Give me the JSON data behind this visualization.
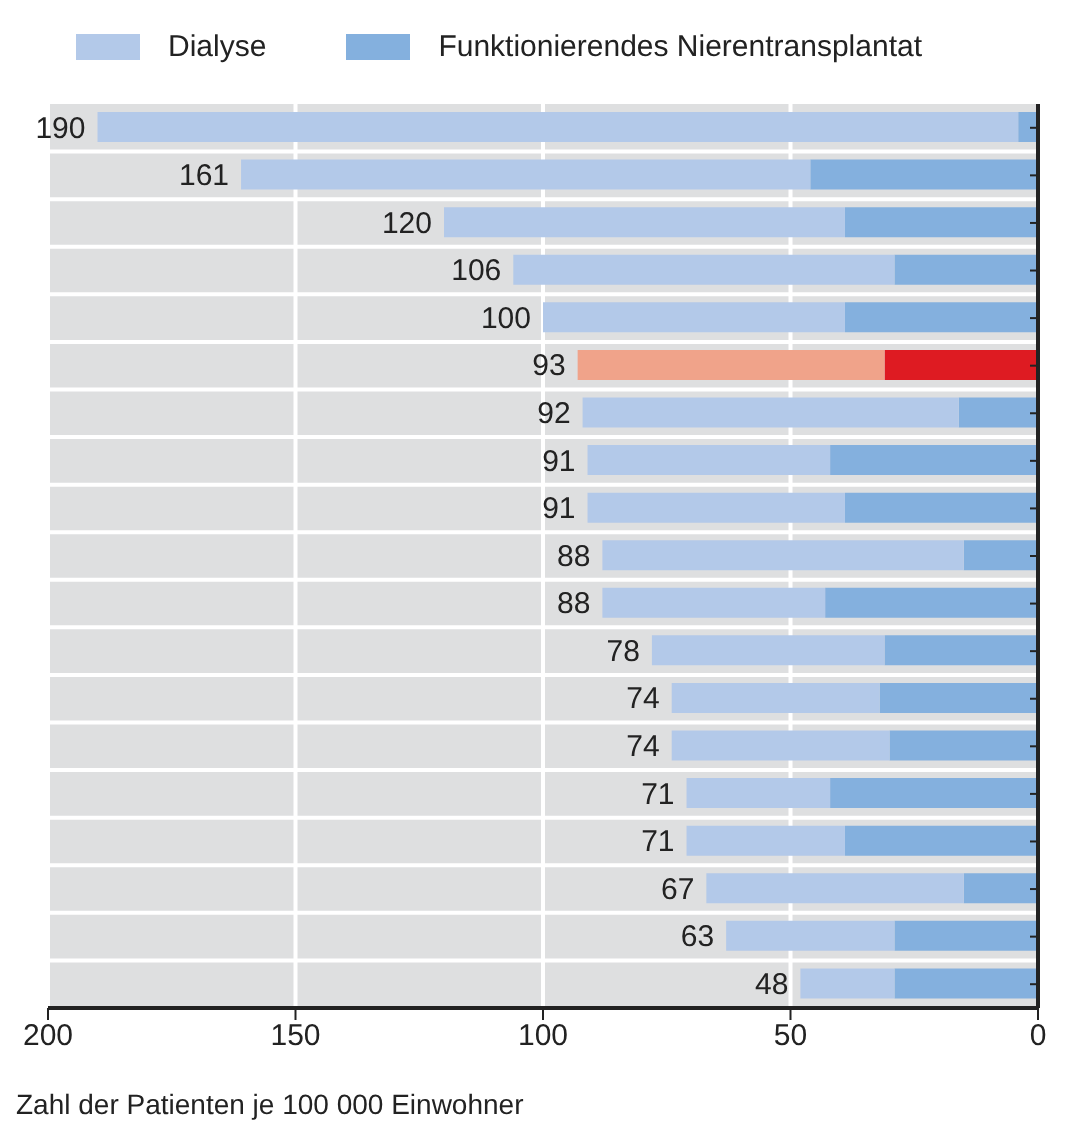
{
  "chart_data": {
    "type": "bar",
    "orientation": "horizontal",
    "stacked": true,
    "xlabel": "Zahl der Patienten je 100 000 Einwohner",
    "categories": [
      null,
      null,
      null,
      null,
      null,
      null,
      null,
      null,
      null,
      null,
      null,
      null,
      null,
      null,
      null,
      null,
      null,
      null,
      null
    ],
    "series": [
      {
        "name": "Funktionierendes Nierentransplantat",
        "color": "#84b0de",
        "colors": [
          "#84b0de",
          "#84b0de",
          "#84b0de",
          "#84b0de",
          "#84b0de",
          "#de1b22",
          "#84b0de",
          "#84b0de",
          "#84b0de",
          "#84b0de",
          "#84b0de",
          "#84b0de",
          "#84b0de",
          "#84b0de",
          "#84b0de",
          "#84b0de",
          "#84b0de",
          "#84b0de",
          "#84b0de"
        ],
        "values": [
          4,
          46,
          39,
          29,
          39,
          31,
          16,
          42,
          39,
          15,
          43,
          31,
          32,
          30,
          42,
          39,
          15,
          29,
          29
        ]
      },
      {
        "name": "Dialyse",
        "color": "#b3c9e9",
        "colors": [
          "#b3c9e9",
          "#b3c9e9",
          "#b3c9e9",
          "#b3c9e9",
          "#b3c9e9",
          "#f0a38a",
          "#b3c9e9",
          "#b3c9e9",
          "#b3c9e9",
          "#b3c9e9",
          "#b3c9e9",
          "#b3c9e9",
          "#b3c9e9",
          "#b3c9e9",
          "#b3c9e9",
          "#b3c9e9",
          "#b3c9e9",
          "#b3c9e9",
          "#b3c9e9"
        ],
        "values": [
          186,
          115,
          81,
          77,
          61,
          62,
          76,
          49,
          52,
          73,
          45,
          47,
          42,
          44,
          29,
          32,
          52,
          34,
          19
        ]
      }
    ],
    "totals": [
      "190",
      "161",
      "120",
      "106",
      "100",
      "93",
      "92",
      "91",
      "91",
      "88",
      "88",
      "78",
      "74",
      "74",
      "71",
      "71",
      "67",
      "63",
      "48"
    ],
    "xlim": [
      200,
      0
    ],
    "xticks": [
      200,
      150,
      100,
      50,
      0
    ],
    "grid": true,
    "legend": "top",
    "tick_labels": "x"
  }
}
